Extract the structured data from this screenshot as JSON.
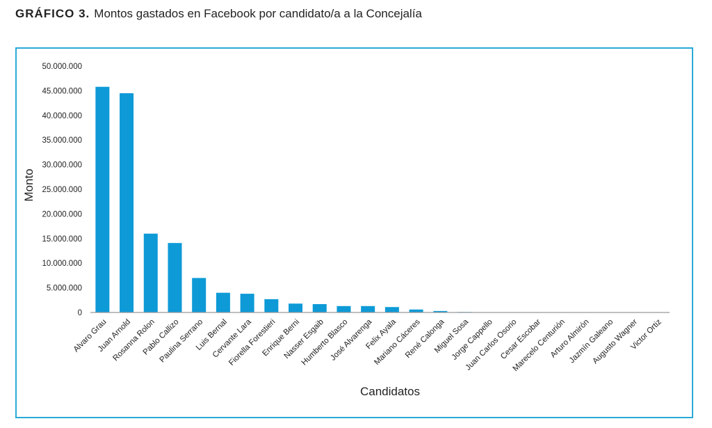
{
  "figure_label": "GRÁFICO 3.",
  "chart_data": {
    "type": "bar",
    "title": "Montos gastados en Facebook por candidato/a a la Concejalía",
    "xlabel": "Candidatos",
    "ylabel": "Monto",
    "ylim": [
      0,
      50000000
    ],
    "yticks": [
      "0",
      "5.000.000",
      "10.000.000",
      "15.000.000",
      "20.000.000",
      "25.000.000",
      "30.000.000",
      "35.000.000",
      "40.000.000",
      "45.000.000",
      "50.000.000"
    ],
    "categories": [
      "Alvaro Grau",
      "Juan Arnold",
      "Rosanna Rolon",
      "Pablo Callizo",
      "Paulina Serrano",
      "Luis Bernal",
      "Cervante Lara",
      "Fiorella Forestieri",
      "Enrique Berni",
      "Nasser Esgaib",
      "Humberto Blasco",
      "José Alvarenga",
      "Felix Ayala",
      "Mariano Cáceres",
      "René Calonga",
      "Miguel Sosa",
      "Jorge Cappello",
      "Juan Carlos Osorio",
      "Cesar Escobar",
      "Marecelo Centurión",
      "Arturo Almirón",
      "Jazmín Galeano",
      "Augusto Wagner",
      "Victor Ortiz"
    ],
    "values": [
      45800000,
      44500000,
      16000000,
      14100000,
      7000000,
      4000000,
      3800000,
      2700000,
      1800000,
      1700000,
      1300000,
      1300000,
      1100000,
      600000,
      300000,
      100000,
      0,
      0,
      0,
      0,
      0,
      0,
      0,
      0
    ],
    "color": "#0e9ad7",
    "grid": false,
    "legend": "none"
  }
}
